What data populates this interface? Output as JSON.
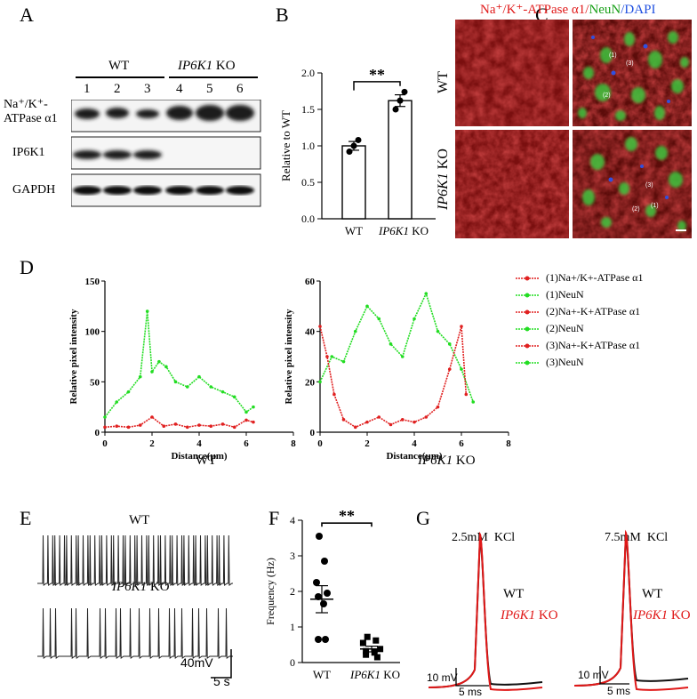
{
  "panels": {
    "A": {
      "label": "A",
      "wt": "WT",
      "ko_gene": "IP6K1",
      "ko_suffix": " KO",
      "lanes": [
        "1",
        "2",
        "3",
        "4",
        "5",
        "6"
      ],
      "rows": [
        "Na⁺/K⁺-",
        "ATPase α1",
        "IP6K1",
        "GAPDH"
      ]
    },
    "B": {
      "label": "B",
      "sig": "**",
      "ylabel": "Relative to WT",
      "xlabels": [
        "WT",
        "IP6K1",
        " KO"
      ]
    },
    "C": {
      "label": "C",
      "title_part1": "Na⁺/K⁺-ATPase α1/",
      "title_part2": "NeuN",
      "title_part3": "/DAPI",
      "row1": "WT",
      "row2_gene": "IP6K1",
      "row2_suffix": " KO",
      "markers_top": [
        "(1)",
        "(3)",
        "(2)"
      ],
      "markers_bottom": [
        "(3)",
        "(2)",
        "(1)"
      ]
    },
    "D": {
      "label": "D",
      "ylabel": "Relative pixel intensity",
      "xlabel": "Distance(μm)",
      "left_title": "WT",
      "right_title_gene": "IP6K1",
      "right_title_suffix": " KO",
      "legend": [
        "(1)Na+/K+-ATPase α1",
        "(1)NeuN",
        "(2)Na+-K+ATPase α1",
        "(2)NeuN",
        "(3)Na+-K+ATPase α1",
        "(3)NeuN"
      ],
      "legend_colors": [
        "#e02020",
        "#22dd22",
        "#e02020",
        "#22dd22",
        "#e02020",
        "#22dd22"
      ]
    },
    "E": {
      "label": "E",
      "wt": "WT",
      "ko_gene": "IP6K1",
      "ko_suffix": " KO",
      "scale_v": "40mV",
      "scale_t": "5 s"
    },
    "F": {
      "label": "F",
      "sig": "**",
      "ylabel": "Frequency (Hz)",
      "xlabels": [
        "WT",
        "IP6K1",
        " KO"
      ]
    },
    "G": {
      "label": "G",
      "cond1": "2.5mM  KCl",
      "cond2": "7.5mM  KCl",
      "wt": "WT",
      "ko_gene": "IP6K1",
      "ko_suffix": " KO",
      "scale_v": "10 mV",
      "scale_t": "5 ms",
      "colors": {
        "wt": "#111111",
        "ko": "#e01818"
      }
    }
  },
  "chart_data": [
    {
      "type": "bar",
      "panel": "B",
      "categories": [
        "WT",
        "IP6K1 KO"
      ],
      "values": [
        1.0,
        1.62
      ],
      "errors": [
        0.06,
        0.08
      ],
      "points": [
        [
          0.92,
          1.0,
          1.08
        ],
        [
          1.5,
          1.62,
          1.74
        ]
      ],
      "ylim": [
        0,
        2.0
      ],
      "yticks": [
        "0.0",
        "0.5",
        "1.0",
        "1.5",
        "2.0"
      ],
      "ylabel": "Relative to WT"
    },
    {
      "type": "line",
      "panel": "D-left",
      "xlim": [
        0,
        8
      ],
      "ylim": [
        0,
        150
      ],
      "xticks": [
        "0",
        "2",
        "4",
        "6",
        "8"
      ],
      "yticks": [
        "0",
        "50",
        "100",
        "150"
      ],
      "series": [
        {
          "name": "(1)NeuN",
          "color": "#22dd22",
          "x": [
            0,
            0.5,
            1,
            1.5,
            1.8,
            2,
            2.3,
            2.6,
            3,
            3.5,
            4,
            4.5,
            5,
            5.5,
            6,
            6.3
          ],
          "y": [
            15,
            30,
            40,
            55,
            120,
            60,
            70,
            65,
            50,
            45,
            55,
            45,
            40,
            35,
            20,
            25
          ]
        },
        {
          "name": "(1)Na+/K+-ATPase α1",
          "color": "#e02020",
          "x": [
            0,
            0.5,
            1,
            1.5,
            2,
            2.5,
            3,
            3.5,
            4,
            4.5,
            5,
            5.5,
            6,
            6.3
          ],
          "y": [
            5,
            6,
            5,
            7,
            15,
            6,
            8,
            5,
            7,
            6,
            8,
            5,
            12,
            10
          ]
        }
      ]
    },
    {
      "type": "line",
      "panel": "D-right",
      "xlim": [
        0,
        8
      ],
      "ylim": [
        0,
        60
      ],
      "xticks": [
        "0",
        "2",
        "4",
        "6",
        "8"
      ],
      "yticks": [
        "0",
        "20",
        "40",
        "60"
      ],
      "series": [
        {
          "name": "(1)NeuN",
          "color": "#22dd22",
          "x": [
            0,
            0.5,
            1,
            1.5,
            2,
            2.5,
            3,
            3.5,
            4,
            4.5,
            5,
            5.5,
            6,
            6.5
          ],
          "y": [
            20,
            30,
            28,
            40,
            50,
            45,
            35,
            30,
            45,
            55,
            40,
            35,
            25,
            12
          ]
        },
        {
          "name": "(2)Na+-K+ATPase α1",
          "color": "#e02020",
          "x": [
            0,
            0.3,
            0.6,
            1,
            1.5,
            2,
            2.5,
            3,
            3.5,
            4,
            4.5,
            5,
            5.5,
            6,
            6.2
          ],
          "y": [
            42,
            30,
            15,
            5,
            2,
            4,
            6,
            3,
            5,
            4,
            6,
            10,
            25,
            42,
            15
          ]
        }
      ]
    },
    {
      "type": "scatter",
      "panel": "F",
      "categories": [
        "WT",
        "IP6K1 KO"
      ],
      "means": [
        1.78,
        0.38
      ],
      "sem": [
        0.38,
        0.08
      ],
      "points": [
        [
          3.55,
          2.85,
          2.25,
          1.95,
          1.85,
          1.65,
          0.65,
          0.65
        ],
        [
          0.72,
          0.62,
          0.55,
          0.38,
          0.32,
          0.28,
          0.22,
          0.15
        ]
      ],
      "ylim": [
        0,
        4
      ],
      "yticks": [
        "0",
        "1",
        "2",
        "3",
        "4"
      ],
      "ylabel": "Frequency (Hz)"
    }
  ]
}
